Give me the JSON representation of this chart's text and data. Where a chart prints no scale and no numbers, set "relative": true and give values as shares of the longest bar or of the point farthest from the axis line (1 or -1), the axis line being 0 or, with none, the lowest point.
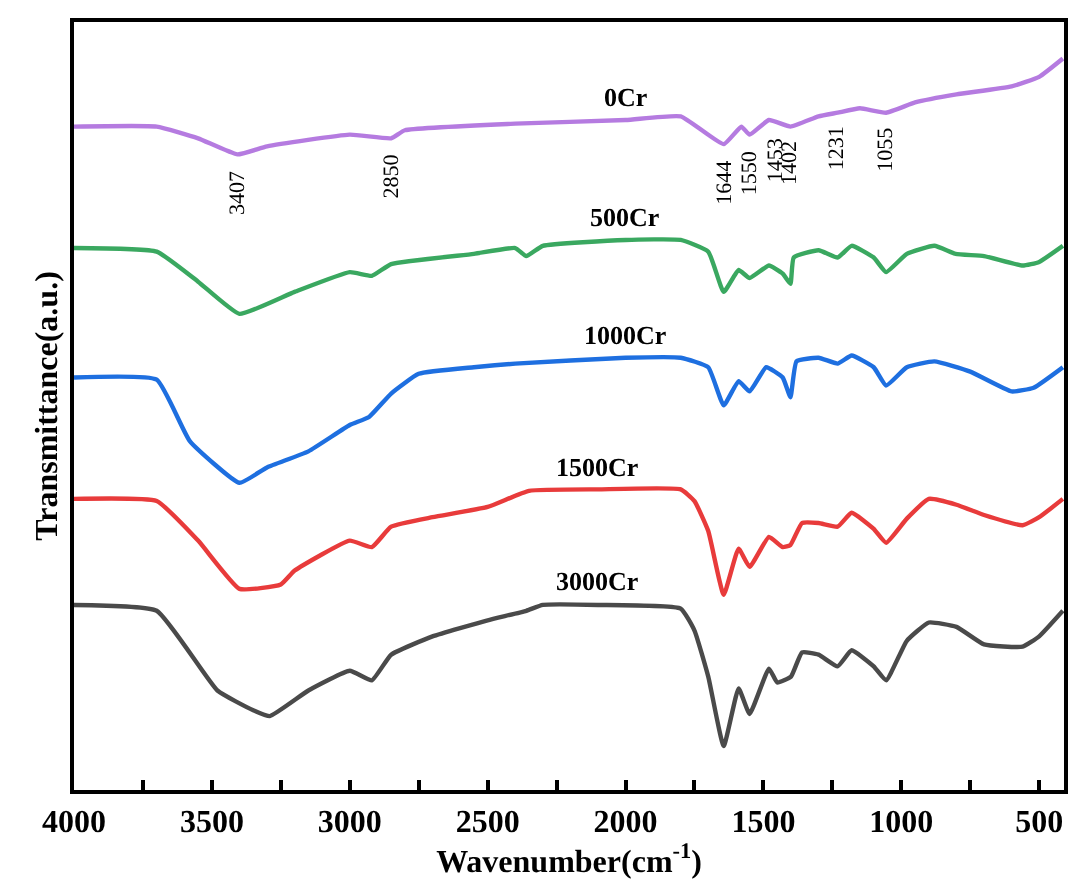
{
  "chart_data": {
    "type": "line",
    "xlabel": "Wavenumber(cm$^{-1}$)",
    "ylabel": "Transmittance(a.u.)",
    "relative": true,
    "tick_labels": "x",
    "xlim": [
      4000,
      410
    ],
    "xticks": [
      4000,
      {
        "value": 3750,
        "label": null
      },
      3500,
      {
        "value": 3250,
        "label": null
      },
      3000,
      {
        "value": 2750,
        "label": null
      },
      2500,
      {
        "value": 2250,
        "label": null
      },
      2000,
      {
        "value": 1750,
        "label": null
      },
      1500,
      {
        "value": 1250,
        "label": null
      },
      1000,
      {
        "value": 750,
        "label": null
      },
      500
    ],
    "series": [
      {
        "name": "0Cr",
        "color": "#b57be0",
        "x": [
          4000,
          3700,
          3550,
          3407,
          3300,
          3000,
          2850,
          2800,
          2400,
          2000,
          1800,
          1644,
          1580,
          1550,
          1480,
          1402,
          1300,
          1231,
          1150,
          1055,
          950,
          800,
          600,
          500,
          414
        ],
        "values": [
          0.907,
          0.907,
          0.891,
          0.869,
          0.88,
          0.896,
          0.891,
          0.902,
          0.911,
          0.916,
          0.921,
          0.883,
          0.907,
          0.896,
          0.916,
          0.907,
          0.921,
          0.926,
          0.932,
          0.926,
          0.94,
          0.951,
          0.962,
          0.975,
          1.0
        ]
      },
      {
        "name": "500Cr",
        "color": "#3aa860",
        "x": [
          4000,
          3700,
          3550,
          3400,
          3200,
          3000,
          2920,
          2850,
          2550,
          2400,
          2360,
          2300,
          2000,
          1800,
          1700,
          1644,
          1590,
          1550,
          1480,
          1430,
          1402,
          1390,
          1300,
          1231,
          1180,
          1100,
          1055,
          980,
          880,
          803,
          700,
          560,
          500,
          414
        ],
        "values": [
          0.741,
          0.736,
          0.695,
          0.651,
          0.681,
          0.708,
          0.703,
          0.719,
          0.733,
          0.741,
          0.73,
          0.744,
          0.752,
          0.752,
          0.736,
          0.681,
          0.711,
          0.7,
          0.717,
          0.706,
          0.692,
          0.728,
          0.738,
          0.728,
          0.744,
          0.728,
          0.708,
          0.733,
          0.744,
          0.733,
          0.73,
          0.717,
          0.722,
          0.744
        ]
      },
      {
        "name": "1000Cr",
        "color": "#1e6fe0",
        "x": [
          4000,
          3700,
          3580,
          3400,
          3300,
          3150,
          3000,
          2930,
          2850,
          2750,
          2550,
          2400,
          2000,
          1800,
          1700,
          1644,
          1590,
          1550,
          1490,
          1430,
          1402,
          1380,
          1300,
          1231,
          1180,
          1100,
          1055,
          980,
          880,
          750,
          600,
          520,
          414
        ],
        "values": [
          0.564,
          0.561,
          0.477,
          0.42,
          0.441,
          0.463,
          0.499,
          0.51,
          0.542,
          0.569,
          0.578,
          0.583,
          0.591,
          0.591,
          0.578,
          0.526,
          0.559,
          0.545,
          0.578,
          0.564,
          0.537,
          0.586,
          0.591,
          0.583,
          0.594,
          0.578,
          0.553,
          0.578,
          0.586,
          0.572,
          0.545,
          0.55,
          0.578
        ]
      },
      {
        "name": "1500Cr",
        "color": "#e83b3b",
        "x": [
          4000,
          3700,
          3550,
          3400,
          3250,
          3200,
          3000,
          2920,
          2850,
          2700,
          2500,
          2350,
          2100,
          1800,
          1750,
          1700,
          1644,
          1590,
          1550,
          1480,
          1430,
          1402,
          1360,
          1300,
          1231,
          1180,
          1100,
          1055,
          980,
          900,
          800,
          700,
          560,
          500,
          414
        ],
        "values": [
          0.398,
          0.395,
          0.341,
          0.275,
          0.281,
          0.3,
          0.341,
          0.332,
          0.36,
          0.373,
          0.387,
          0.409,
          0.411,
          0.411,
          0.395,
          0.354,
          0.267,
          0.33,
          0.305,
          0.346,
          0.332,
          0.335,
          0.365,
          0.365,
          0.36,
          0.379,
          0.357,
          0.338,
          0.371,
          0.398,
          0.39,
          0.376,
          0.362,
          0.373,
          0.398
        ]
      },
      {
        "name": "3000Cr",
        "color": "#4a4a4a",
        "x": [
          4000,
          3700,
          3480,
          3350,
          3290,
          3150,
          3000,
          2920,
          2850,
          2700,
          2500,
          2360,
          2300,
          2100,
          1800,
          1750,
          1700,
          1644,
          1590,
          1550,
          1480,
          1450,
          1400,
          1360,
          1300,
          1231,
          1180,
          1100,
          1055,
          980,
          900,
          800,
          700,
          560,
          500,
          414
        ],
        "values": [
          0.253,
          0.245,
          0.136,
          0.109,
          0.101,
          0.136,
          0.163,
          0.15,
          0.185,
          0.21,
          0.232,
          0.245,
          0.253,
          0.253,
          0.248,
          0.218,
          0.155,
          0.06,
          0.139,
          0.104,
          0.166,
          0.147,
          0.155,
          0.188,
          0.185,
          0.169,
          0.191,
          0.169,
          0.15,
          0.204,
          0.229,
          0.223,
          0.199,
          0.196,
          0.21,
          0.245
        ]
      }
    ],
    "annotations": [
      {
        "text": "3407",
        "x": 3407,
        "y": 0.869
      },
      {
        "text": "2850",
        "x": 2850,
        "y": 0.891
      },
      {
        "text": "1644",
        "x": 1644,
        "y": 0.883
      },
      {
        "text": "1550",
        "x": 1550,
        "y": 0.896
      },
      {
        "text": "1453",
        "x": 1453,
        "y": 0.912
      },
      {
        "text": "1402",
        "x": 1402,
        "y": 0.907
      },
      {
        "text": "1231",
        "x": 1231,
        "y": 0.926
      },
      {
        "text": "1055",
        "x": 1055,
        "y": 0.926
      }
    ]
  }
}
